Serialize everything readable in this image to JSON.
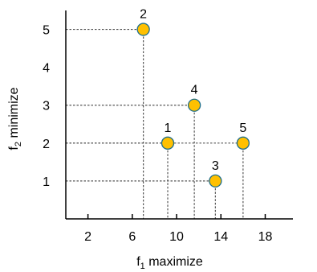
{
  "chart_data": {
    "type": "scatter",
    "title": "",
    "xlabel": {
      "base": "f",
      "sub": "1",
      "rest": " maximize"
    },
    "ylabel": {
      "base": "f",
      "sub": "2",
      "rest": " minimize"
    },
    "x_ticks": [
      2,
      6,
      10,
      14,
      18
    ],
    "x_tick_labels": [
      "2",
      "6",
      "10",
      "14",
      "18"
    ],
    "y_ticks": [
      1,
      2,
      3,
      4,
      5
    ],
    "y_tick_labels": [
      "1",
      "2",
      "3",
      "4",
      "5"
    ],
    "xlim": [
      0,
      20.5
    ],
    "ylim": [
      0,
      5.5
    ],
    "grid": false,
    "points": [
      {
        "label": "1",
        "x": 9.2,
        "y": 2.0
      },
      {
        "label": "2",
        "x": 7.0,
        "y": 5.0
      },
      {
        "label": "3",
        "x": 13.5,
        "y": 1.0
      },
      {
        "label": "4",
        "x": 11.6,
        "y": 3.0
      },
      {
        "label": "5",
        "x": 16.0,
        "y": 2.0
      }
    ],
    "point_fill": "#FFC000",
    "point_stroke": "#1F6F8B",
    "guide_color": "#555555"
  }
}
